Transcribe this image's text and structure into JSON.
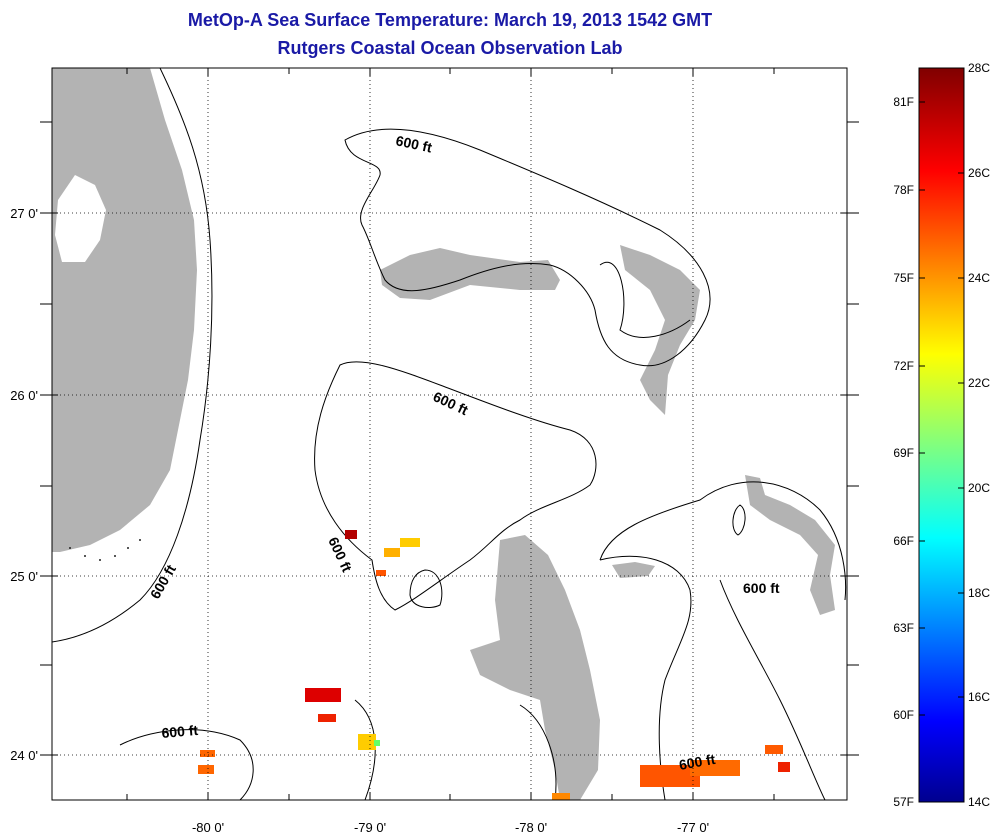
{
  "header": {
    "title": "MetOp-A Sea Surface Temperature:  March 19, 2013 1542 GMT",
    "subtitle": "Rutgers Coastal Ocean Observation Lab"
  },
  "map": {
    "lon_ticks": [
      "-80 0'",
      "-79 0'",
      "-78 0'",
      "-77 0'"
    ],
    "lat_ticks": [
      "27 0'",
      "26 0'",
      "25 0'",
      "24 0'"
    ],
    "contour_labels": [
      "600 ft",
      "600 ft",
      "600 ft",
      "600 ft",
      "600 ft",
      "600 ft"
    ],
    "land_color": "#b3b3b3",
    "grid": "dotted"
  },
  "colorbar": {
    "fahrenheit_labels": [
      "81F",
      "78F",
      "75F",
      "72F",
      "69F",
      "66F",
      "63F",
      "60F",
      "57F"
    ],
    "celsius_labels": [
      "28C",
      "26C",
      "24C",
      "22C",
      "20C",
      "18C",
      "16C",
      "14C"
    ],
    "colormap": "jet"
  }
}
